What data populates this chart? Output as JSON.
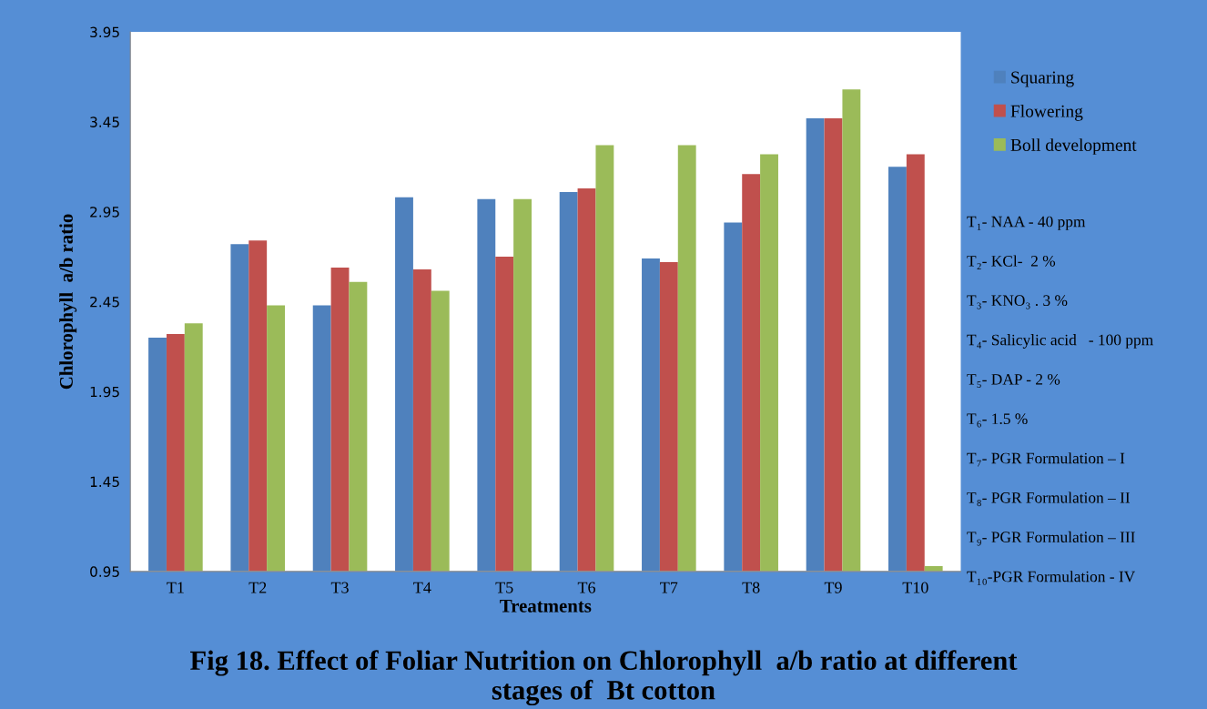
{
  "chart_data": {
    "type": "bar",
    "title": "Fig 18. Effect of Foliar Nutrition on Chlorophyll  a/b ratio at different\nstages of  Bt cotton",
    "xlabel": "Treatments",
    "ylabel": "Chlorophyll  a/b ratio",
    "categories": [
      "T1",
      "T2",
      "T3",
      "T4",
      "T5",
      "T6",
      "T7",
      "T8",
      "T9",
      "T10"
    ],
    "series": [
      {
        "name": "Squaring",
        "color": "#4f81bd",
        "values": [
          2.25,
          2.77,
          2.43,
          3.03,
          3.02,
          3.06,
          2.69,
          2.89,
          3.47,
          3.2
        ]
      },
      {
        "name": "Flowering",
        "color": "#c0504d",
        "values": [
          2.27,
          2.79,
          2.64,
          2.63,
          2.7,
          3.08,
          2.67,
          3.16,
          3.47,
          3.27
        ]
      },
      {
        "name": "Boll development",
        "color": "#9bbb59",
        "values": [
          2.33,
          2.43,
          2.56,
          2.51,
          3.02,
          3.32,
          3.32,
          3.27,
          3.63,
          0.98
        ]
      }
    ],
    "ylim": [
      0.95,
      3.95
    ],
    "yticks": [
      0.95,
      1.45,
      1.95,
      2.45,
      2.95,
      3.45,
      3.95
    ],
    "grid": false,
    "legend": "top right",
    "annotations": [
      "T₁- NAA - 40 ppm",
      "T₂- KCl-  2 %",
      "T₃- KNO₃ . 3 %",
      "T₄- Salicylic acid   - 100 ppm",
      "T₅- DAP - 2 %",
      "T₆- 1.5 %",
      "T₇- PGR Formulation – I",
      "T₈- PGR Formulation – II",
      "T₉- PGR Formulation – III",
      "T₁₀-PGR Formulation - IV"
    ]
  }
}
